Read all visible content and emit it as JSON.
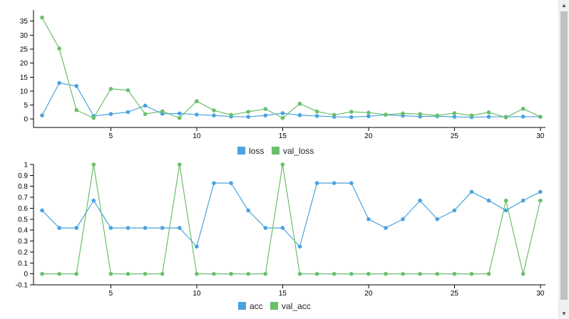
{
  "colors": {
    "series1": "#4aa3df",
    "series2": "#6bbf6b"
  },
  "chart_data": [
    {
      "type": "line",
      "x": [
        1,
        2,
        3,
        4,
        5,
        6,
        7,
        8,
        9,
        10,
        11,
        12,
        13,
        14,
        15,
        16,
        17,
        18,
        19,
        20,
        21,
        22,
        23,
        24,
        25,
        26,
        27,
        28,
        29,
        30
      ],
      "xticks": [
        5,
        10,
        15,
        20,
        25,
        30
      ],
      "xlim": [
        0.5,
        30.3
      ],
      "ylim": [
        -3,
        39
      ],
      "yticks": [
        0,
        5,
        10,
        15,
        20,
        25,
        30,
        35
      ],
      "series": [
        {
          "name": "loss",
          "values": [
            1.3,
            12.9,
            11.8,
            1.1,
            1.8,
            2.5,
            4.8,
            1.9,
            2.0,
            1.6,
            1.3,
            0.9,
            0.8,
            1.3,
            2.1,
            1.4,
            1.1,
            0.8,
            0.7,
            1.0,
            1.5,
            1.2,
            0.9,
            1.0,
            0.8,
            0.7,
            0.8,
            0.8,
            0.9,
            0.8
          ]
        },
        {
          "name": "val_loss",
          "values": [
            36.3,
            25.2,
            3.2,
            0.4,
            10.8,
            10.3,
            1.8,
            2.8,
            0.4,
            6.4,
            3.1,
            1.5,
            2.6,
            3.6,
            0.4,
            5.5,
            2.7,
            1.5,
            2.6,
            2.3,
            1.6,
            2.0,
            1.8,
            1.3,
            2.1,
            1.3,
            2.4,
            0.6,
            3.7,
            0.8
          ]
        }
      ],
      "legend": [
        "loss",
        "val_loss"
      ],
      "legend_position": "bottom-center",
      "grid": false
    },
    {
      "type": "line",
      "x": [
        1,
        2,
        3,
        4,
        5,
        6,
        7,
        8,
        9,
        10,
        11,
        12,
        13,
        14,
        15,
        16,
        17,
        18,
        19,
        20,
        21,
        22,
        23,
        24,
        25,
        26,
        27,
        28,
        29,
        30
      ],
      "xticks": [
        5,
        10,
        15,
        20,
        25,
        30
      ],
      "xlim": [
        0.5,
        30.3
      ],
      "ylim": [
        -0.1,
        1
      ],
      "yticks": [
        "-0.1",
        "0",
        "0.1",
        "0.2",
        "0.3",
        "0.4",
        "0.5",
        "0.6",
        "0.7",
        "0.8",
        "0.9",
        "1"
      ],
      "series": [
        {
          "name": "acc",
          "values": [
            0.58,
            0.42,
            0.42,
            0.67,
            0.42,
            0.42,
            0.42,
            0.42,
            0.42,
            0.25,
            0.83,
            0.83,
            0.58,
            0.42,
            0.42,
            0.25,
            0.83,
            0.83,
            0.83,
            0.5,
            0.42,
            0.5,
            0.67,
            0.5,
            0.58,
            0.75,
            0.67,
            0.58,
            0.67,
            0.75
          ]
        },
        {
          "name": "val_acc",
          "values": [
            0,
            0,
            0,
            1,
            0,
            0,
            0,
            0,
            1,
            0,
            0,
            0,
            0,
            0,
            1,
            0,
            0,
            0,
            0,
            0,
            0,
            0,
            0,
            0,
            0,
            0,
            0,
            0.67,
            0,
            0.67
          ]
        }
      ],
      "legend": [
        "acc",
        "val_acc"
      ],
      "legend_position": "bottom-center",
      "grid": false
    }
  ]
}
